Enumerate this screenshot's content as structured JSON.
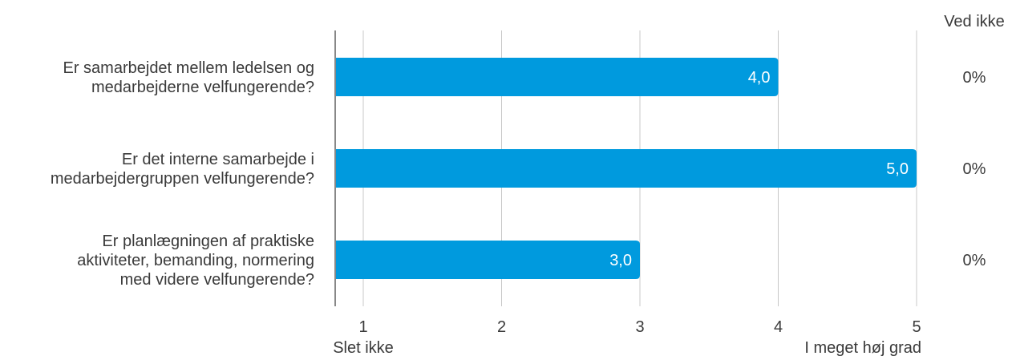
{
  "chart_data": {
    "type": "bar",
    "orientation": "horizontal",
    "categories": [
      [
        "Er samarbejdet mellem ledelsen og",
        "medarbejderne velfungerende?"
      ],
      [
        "Er det interne samarbejde i",
        "medarbejdergruppen velfungerende?"
      ],
      [
        "Er planlægningen af praktiske",
        "aktiviteter, bemanding, normering",
        "med videre velfungerende?"
      ]
    ],
    "values": [
      4.0,
      5.0,
      3.0
    ],
    "value_labels": [
      "4,0",
      "5,0",
      "3,0"
    ],
    "xlim": [
      1,
      5
    ],
    "xticks": [
      1,
      2,
      3,
      4,
      5
    ],
    "xtick_labels": [
      "1",
      "2",
      "3",
      "4",
      "5"
    ],
    "x_min_label": "Slet ikke",
    "x_max_label": "I meget høj grad",
    "grid": true,
    "side_column": {
      "header": "Ved ikke",
      "values": [
        "0%",
        "0%",
        "0%"
      ]
    },
    "colors": {
      "bar": "#009ADE",
      "grid": "#C8C8C8",
      "axis": "#888888",
      "text": "#3A3A3A",
      "value_text": "#FFFFFF"
    }
  }
}
